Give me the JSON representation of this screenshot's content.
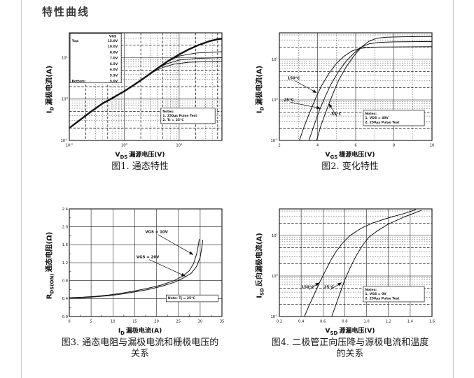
{
  "page": {
    "title": "特性曲线"
  },
  "chart_data": [
    {
      "name": "fig1-output-characteristics",
      "type": "line",
      "caption": "图1. 通态特性",
      "xlabel": {
        "base": "V",
        "sub": "DS",
        "rest": "漏源电压(V)"
      },
      "ylabel": {
        "base": "I",
        "sub": "D",
        "rest": "漏极电流(A)"
      },
      "xscale": "log",
      "yscale": "log",
      "xlim": [
        0.1,
        60
      ],
      "ylim": [
        0.1,
        40
      ],
      "xticks": [
        0.1,
        1,
        10
      ],
      "xtick_labels": [
        "10^-1",
        "10^0",
        "10^1"
      ],
      "yticks": [
        0.1,
        1,
        10
      ],
      "ytick_labels": [
        "10^-1",
        "10^0",
        "10^1"
      ],
      "legend": {
        "header": "VGS",
        "rows": [
          [
            "Top:",
            "15.0V"
          ],
          [
            "",
            "10.0V"
          ],
          [
            "",
            "8.0V"
          ],
          [
            "",
            "7.0V"
          ],
          [
            "",
            "6.5V"
          ],
          [
            "",
            "6.0V"
          ],
          [
            "",
            "5.5V"
          ],
          [
            "Bottom:",
            "5.0V"
          ]
        ],
        "fx": 0.005,
        "fy": 0.005,
        "fw": 0.335,
        "fh": 0.46
      },
      "notes": {
        "lines": [
          "Notes:",
          "1. 250μs Pulse Test",
          "2. Tc = 25°C"
        ],
        "fx": 0.6,
        "fy": 0.7,
        "fw": 0.355
      },
      "series": [
        {
          "name": "VGS=15.0V",
          "width": 2.4,
          "points": [
            [
              0.1,
              0.2
            ],
            [
              0.15,
              0.3
            ],
            [
              0.25,
              0.5
            ],
            [
              0.4,
              0.78
            ],
            [
              0.6,
              1.05
            ],
            [
              1,
              1.55
            ],
            [
              1.5,
              2.2
            ],
            [
              2.5,
              3.5
            ],
            [
              4,
              5.5
            ],
            [
              6,
              8
            ],
            [
              10,
              12
            ],
            [
              15,
              16
            ],
            [
              22,
              20
            ],
            [
              35,
              25
            ],
            [
              50,
              28
            ],
            [
              60,
              29
            ]
          ]
        },
        {
          "name": "VGS=6.5V",
          "width": 0.9,
          "points": [
            [
              6,
              8
            ],
            [
              10,
              11
            ],
            [
              20,
              13
            ],
            [
              60,
              14
            ]
          ]
        },
        {
          "name": "VGS=6.0V",
          "width": 0.9,
          "points": [
            [
              4,
              5.5
            ],
            [
              6,
              7.2
            ],
            [
              10,
              8.8
            ],
            [
              20,
              9.6
            ],
            [
              60,
              10
            ]
          ]
        },
        {
          "name": "VGS=5.5V",
          "width": 0.9,
          "points": [
            [
              3,
              4.2
            ],
            [
              5,
              5.8
            ],
            [
              8,
              7
            ],
            [
              15,
              7.8
            ],
            [
              60,
              8.2
            ]
          ]
        }
      ],
      "annotations": []
    },
    {
      "name": "fig2-transfer-characteristics",
      "type": "line",
      "caption": "图2. 变化特性",
      "xlabel": {
        "base": "V",
        "sub": "GS",
        "rest": "栅源电压(V)"
      },
      "ylabel": {
        "base": "I",
        "sub": "D",
        "rest": "漏极电流(A)"
      },
      "xscale": "linear",
      "yscale": "log",
      "xlim": [
        2,
        10
      ],
      "ylim": [
        0.1,
        45
      ],
      "xticks": [
        2,
        4,
        6,
        8,
        10
      ],
      "xtick_labels": [
        "2",
        "4",
        "6",
        "8",
        "10"
      ],
      "xgrid_major": [
        4,
        6,
        8
      ],
      "xgrid_minor": [
        3,
        5,
        7,
        9
      ],
      "yticks": [
        0.1,
        1,
        10
      ],
      "ytick_labels": [
        "10^-1",
        "10^0",
        "10^1"
      ],
      "notes": {
        "lines": [
          "Notes:",
          "1. VDS = 40V",
          "2. 250μs Pulse Test"
        ],
        "fx": 0.55,
        "fy": 0.72,
        "fw": 0.4
      },
      "series": [
        {
          "name": "150°C",
          "width": 1,
          "points": [
            [
              3.05,
              0.1
            ],
            [
              3.3,
              0.22
            ],
            [
              3.6,
              0.5
            ],
            [
              3.9,
              1.1
            ],
            [
              4.2,
              2.2
            ],
            [
              4.6,
              4.5
            ],
            [
              5.0,
              8
            ],
            [
              5.4,
              12
            ],
            [
              5.8,
              16
            ],
            [
              6.2,
              18.5
            ],
            [
              6.6,
              19.5
            ],
            [
              7.2,
              20
            ],
            [
              10,
              20.5
            ]
          ]
        },
        {
          "name": "25°C",
          "width": 1,
          "points": [
            [
              3.55,
              0.1
            ],
            [
              3.8,
              0.22
            ],
            [
              4.1,
              0.55
            ],
            [
              4.4,
              1.2
            ],
            [
              4.7,
              2.4
            ],
            [
              5.1,
              5
            ],
            [
              5.5,
              9
            ],
            [
              5.9,
              14
            ],
            [
              6.3,
              20
            ],
            [
              6.7,
              24
            ],
            [
              7.2,
              26
            ],
            [
              8,
              27
            ],
            [
              10,
              27.5
            ]
          ]
        },
        {
          "name": "-55°C",
          "width": 1,
          "points": [
            [
              3.95,
              0.1
            ],
            [
              4.2,
              0.25
            ],
            [
              4.5,
              0.6
            ],
            [
              4.8,
              1.4
            ],
            [
              5.1,
              3
            ],
            [
              5.5,
              6.5
            ],
            [
              5.9,
              12
            ],
            [
              6.3,
              20
            ],
            [
              6.7,
              28
            ],
            [
              7.1,
              33
            ],
            [
              7.6,
              35
            ],
            [
              8.5,
              36
            ],
            [
              10,
              36.5
            ]
          ]
        }
      ],
      "annotations": [
        {
          "text": "150°C",
          "x": 2.75,
          "y": 3.2,
          "ax": 3.95,
          "ay": 1.5
        },
        {
          "text": "25°C",
          "x": 2.5,
          "y": 0.95,
          "ax": 4.15,
          "ay": 0.62
        },
        {
          "text": "-55°C",
          "x": 4.95,
          "y": 0.42,
          "ax": 4.6,
          "ay": 0.8
        }
      ]
    },
    {
      "name": "fig3-rdson-vs-id",
      "type": "line",
      "caption": "图3. 通态电阻与漏极电流和栅极电压的关系",
      "xlabel": {
        "base": "I",
        "sub": "D",
        "rest": "漏极电流(A)"
      },
      "ylabel": {
        "base": "R",
        "sub": "DS(ON)",
        "rest": "通态电阻(Ω)"
      },
      "xscale": "linear",
      "yscale": "linear",
      "xlim": [
        0,
        35
      ],
      "ylim": [
        0,
        2.4
      ],
      "xticks": [
        0,
        5,
        10,
        15,
        20,
        25,
        30,
        35
      ],
      "xtick_labels": [
        "0",
        "5",
        "10",
        "15",
        "20",
        "25",
        "30",
        "35"
      ],
      "yticks": [
        0,
        0.4,
        0.8,
        1.2,
        1.6,
        2.0,
        2.4
      ],
      "ytick_labels": [
        "0.0",
        "0.4",
        "0.8",
        "1.2",
        "1.6",
        "2.0",
        "2.4"
      ],
      "solid_grid": true,
      "notes": {
        "lines": [
          "Note: Tj = 25°C"
        ],
        "fx": 0.635,
        "fy": 0.8,
        "fw": 0.34
      },
      "series": [
        {
          "name": "VGS=10V",
          "width": 1,
          "points": [
            [
              0,
              0.42
            ],
            [
              3,
              0.43
            ],
            [
              6,
              0.45
            ],
            [
              9,
              0.48
            ],
            [
              12,
              0.52
            ],
            [
              15,
              0.57
            ],
            [
              18,
              0.63
            ],
            [
              21,
              0.7
            ],
            [
              24,
              0.8
            ],
            [
              26,
              0.9
            ],
            [
              27.5,
              1.02
            ],
            [
              28.5,
              1.18
            ],
            [
              29.2,
              1.4
            ],
            [
              29.6,
              1.6
            ],
            [
              29.8,
              1.72
            ]
          ]
        },
        {
          "name": "VGS=20V",
          "width": 1,
          "points": [
            [
              0,
              0.41
            ],
            [
              3,
              0.42
            ],
            [
              6,
              0.44
            ],
            [
              9,
              0.465
            ],
            [
              12,
              0.5
            ],
            [
              15,
              0.55
            ],
            [
              18,
              0.6
            ],
            [
              21,
              0.67
            ],
            [
              24,
              0.76
            ],
            [
              26,
              0.85
            ],
            [
              28,
              0.97
            ],
            [
              29.2,
              1.12
            ],
            [
              30,
              1.32
            ],
            [
              30.4,
              1.55
            ],
            [
              30.6,
              1.7
            ]
          ]
        }
      ],
      "annotations": [
        {
          "text": "VGS = 10V",
          "x": 20,
          "y": 1.86,
          "ax": 28.4,
          "ay": 1.38
        },
        {
          "text": "VGS = 20V",
          "x": 18,
          "y": 1.3,
          "ax": 26.6,
          "ay": 0.9
        }
      ]
    },
    {
      "name": "fig4-body-diode-forward-voltage",
      "type": "line",
      "caption": "图4. 二极管正向压降与源极电流和温度的关系",
      "xlabel": {
        "base": "V",
        "sub": "SD",
        "rest": "源漏电压(V)"
      },
      "ylabel": {
        "base": "I",
        "sub": "SD",
        "rest": "反向漏极电流(A)"
      },
      "xscale": "linear",
      "yscale": "log",
      "xlim": [
        0.2,
        1.6
      ],
      "ylim": [
        0.1,
        45
      ],
      "xticks": [
        0.2,
        0.4,
        0.6,
        0.8,
        1.0,
        1.2,
        1.4,
        1.6
      ],
      "xtick_labels": [
        "0.2",
        "0.4",
        "0.6",
        "0.8",
        "1.0",
        "1.2",
        "1.4",
        "1.6"
      ],
      "xgrid_major": [
        0.4,
        0.6,
        0.8,
        1.0,
        1.2,
        1.4
      ],
      "xgrid_minor": [],
      "yticks": [
        0.1,
        1,
        10
      ],
      "ytick_labels": [
        "10^-1",
        "10^0",
        "10^1"
      ],
      "notes": {
        "lines": [
          "Notes:",
          "1. VGS = 0V",
          "2. 250μs Pulse Test"
        ],
        "fx": 0.55,
        "fy": 0.72,
        "fw": 0.4
      },
      "series": [
        {
          "name": "150°C",
          "width": 1,
          "points": [
            [
              0.43,
              0.1
            ],
            [
              0.47,
              0.18
            ],
            [
              0.52,
              0.35
            ],
            [
              0.57,
              0.7
            ],
            [
              0.62,
              1.3
            ],
            [
              0.67,
              2.4
            ],
            [
              0.72,
              4
            ],
            [
              0.78,
              6.5
            ],
            [
              0.85,
              10
            ],
            [
              0.95,
              15
            ],
            [
              1.05,
              20
            ],
            [
              1.2,
              27
            ],
            [
              1.35,
              35
            ],
            [
              1.45,
              43
            ]
          ]
        },
        {
          "name": "25°C",
          "width": 1,
          "points": [
            [
              0.68,
              0.1
            ],
            [
              0.72,
              0.2
            ],
            [
              0.76,
              0.4
            ],
            [
              0.8,
              0.8
            ],
            [
              0.85,
              1.6
            ],
            [
              0.9,
              3
            ],
            [
              0.96,
              5.5
            ],
            [
              1.02,
              9
            ],
            [
              1.1,
              13
            ],
            [
              1.2,
              19
            ],
            [
              1.35,
              29
            ],
            [
              1.5,
              41
            ]
          ]
        }
      ],
      "annotations": [
        {
          "text": "150°C",
          "x": 0.46,
          "y": 0.5,
          "ax": 0.565,
          "ay": 0.68
        },
        {
          "text": "25°C",
          "x": 0.655,
          "y": 0.5,
          "ax": 0.77,
          "ay": 0.68
        }
      ]
    }
  ]
}
